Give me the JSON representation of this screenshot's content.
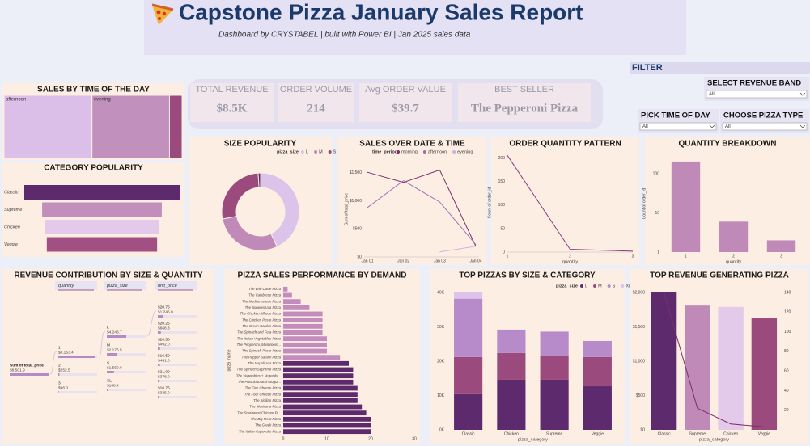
{
  "header": {
    "title": "Capstone Pizza January Sales Report",
    "subtitle": "Dashboard by CRYSTABEL | built with Power BI | Jan 2025 sales data"
  },
  "kpis": [
    {
      "label": "TOTAL REVENUE",
      "value": "$8.5K"
    },
    {
      "label": "ORDER VOLUME",
      "value": "214"
    },
    {
      "label": "Avg ORDER VALUE",
      "value": "$39.7"
    },
    {
      "label": "BEST SELLER",
      "value": "The Pepperoni Pizza"
    }
  ],
  "filters": {
    "title": "FILTER",
    "items": [
      {
        "label": "SELECT REVENUE BAND",
        "value": "All"
      },
      {
        "label": "PICK TIME OF DAY",
        "value": "All"
      },
      {
        "label": "CHOOSE PIZZA TYPE",
        "value": "All"
      }
    ]
  },
  "chart_data": [
    {
      "type": "treemap",
      "title": "SALES BY TIME OF THE DAY",
      "categories": [
        "afternoon",
        "evening",
        null
      ],
      "values": [
        4200,
        3700,
        600
      ],
      "colors": [
        "#dcbfe8",
        "#c290bd",
        "#9a4a7c"
      ]
    },
    {
      "type": "funnel",
      "title": "CATEGORY POPULARITY",
      "categories": [
        "Classic",
        "Supreme",
        "Chicken",
        "Veggie"
      ],
      "values": [
        100,
        77,
        74,
        71
      ],
      "colors": [
        "#5e2a6e",
        "#c28fbd",
        "#e3c9ea",
        "#a24f83"
      ]
    },
    {
      "type": "donut",
      "title": "SIZE POPULARITY",
      "legend_title": "pizza_size",
      "categories": [
        "L",
        "M",
        "S",
        "XL"
      ],
      "values": [
        43,
        29,
        27,
        1
      ],
      "colors": [
        "#dcc3ea",
        "#c08ab8",
        "#9a4a7c",
        "#5e2a6e"
      ]
    },
    {
      "type": "line",
      "title": "SALES OVER DATE & TIME",
      "legend_title": "time_period",
      "categories": [
        "Jan 01",
        "Jan 02",
        "Jan 03",
        "Jan 04"
      ],
      "series": [
        {
          "name": "morning",
          "color": "#7b2d6e",
          "values": [
            1510,
            1330,
            1550,
            190
          ]
        },
        {
          "name": "afternoon",
          "color": "#a070b0",
          "values": [
            880,
            1360,
            980,
            220
          ]
        },
        {
          "name": "evening",
          "color": "#d4aede",
          "values": [
            null,
            null,
            90,
            190
          ]
        }
      ],
      "ylim": [
        0,
        1700
      ],
      "yticks": [
        {
          "value": 0,
          "label": "$0"
        },
        {
          "value": 500,
          "label": "$500"
        },
        {
          "value": 1000,
          "label": "$1,000"
        },
        {
          "value": 1500,
          "label": "$1,500"
        }
      ],
      "ylabel": "Sum of total_price"
    },
    {
      "type": "line",
      "title": "ORDER QUANTITY PATTERN",
      "x": [
        1,
        2,
        3
      ],
      "values": [
        206,
        6,
        2
      ],
      "color": "#8a3b82",
      "xlim": [
        1,
        3
      ],
      "xticks": [
        1,
        2,
        3
      ],
      "ylim": [
        0,
        210
      ],
      "yticks": [
        0,
        50,
        100,
        150,
        200
      ],
      "xlabel": "quantity",
      "ylabel": "Count of order_id"
    },
    {
      "type": "bar",
      "title": "QUANTITY BREAKDOWN",
      "categories": [
        "1",
        "2",
        "3"
      ],
      "values": [
        206,
        6,
        2
      ],
      "color": "#c08ab8",
      "log_scale": true,
      "ylim": [
        1,
        300
      ],
      "yticks": [
        1,
        10,
        100
      ],
      "xlabel": "quantity",
      "ylabel": "Count of order_id"
    },
    {
      "type": "decomposition",
      "title": "REVENUE CONTRIBUTION BY SIZE & QUANTITY",
      "fields": [
        "quantity",
        "pizza_size",
        "unit_price"
      ],
      "root": {
        "label": "Sum of total_price",
        "value": 8501.9,
        "value_label": "$8,501.9"
      },
      "levels": [
        [
          {
            "label": "1",
            "value": 8153.4,
            "value_label": "$8,153.4"
          },
          {
            "label": "2",
            "value": 252.5,
            "value_label": "$252.5"
          },
          {
            "label": "3",
            "value": 96.0,
            "value_label": "$96.0"
          }
        ],
        [
          {
            "label": "L",
            "value": 4248.7,
            "value_label": "$4,248.7"
          },
          {
            "label": "M",
            "value": 2176.5,
            "value_label": "$2,176.5"
          },
          {
            "label": "S",
            "value": 1559.8,
            "value_label": "$1,559.8"
          },
          {
            "label": "XL",
            "value": 168.4,
            "value_label": "$168.4"
          }
        ],
        [
          {
            "label": "$20.75",
            "value": 1245.0,
            "value_label": "$1,245.0"
          },
          {
            "label": "$20.25",
            "value": 668.3,
            "value_label": "$668.3"
          },
          {
            "label": "$20.50",
            "value": 492.0,
            "value_label": "$492.0"
          },
          {
            "label": "$16.50",
            "value": 461.0,
            "value_label": "$461.0"
          },
          {
            "label": "$21.00",
            "value": 378.0,
            "value_label": "$378.0"
          },
          {
            "label": "$16.75",
            "value": 335.0,
            "value_label": "$335.0"
          }
        ]
      ]
    },
    {
      "type": "bar",
      "orientation": "horizontal",
      "title": "PIZZA SALES PERFORMANCE BY DEMAND",
      "ylabel": "pizza_name",
      "categories": [
        "The Brie Carre Pizza",
        "The Calabrese Pizza",
        "The Mediterranean Pizza",
        "The Soppressata Pizza",
        "The Chicken Alfredo Pizza",
        "The Chicken Pesto Pizza",
        "The Green Garden Pizza",
        "The Spinach and Feta Pizza",
        "The Italian Vegetables Pizza",
        "The Pepperoni, Mushroom...",
        "The Spinach Pesto Pizza",
        "The Pepper Salami Pizza",
        "The Napolitana Pizza",
        "The Spinach Supreme Pizza",
        "The Vegetables + Vegetabl...",
        "The Prosciutto and Arugul...",
        "The Five Cheese Pizza",
        "The Four Cheese Pizza",
        "The Sicilian Pizza",
        "The Mexicana Pizza",
        "The Southwest Chicken Pi...",
        "The Big Meat Pizza",
        "The Greek Pizza",
        "The Italian Capocollo Pizza"
      ],
      "values": [
        1,
        2,
        4,
        6,
        9,
        9,
        9,
        9,
        10,
        10,
        10,
        13,
        15,
        16,
        16,
        16,
        17,
        17,
        17,
        18,
        19,
        20,
        20,
        20
      ],
      "colors": [
        "#c38cbc",
        "#c38cbc",
        "#c38cbc",
        "#c38cbc",
        "#c38cbc",
        "#c38cbc",
        "#c38cbc",
        "#c38cbc",
        "#c38cbc",
        "#c38cbc",
        "#c38cbc",
        "#c38cbc",
        "#5e2a6e",
        "#5e2a6e",
        "#5e2a6e",
        "#5e2a6e",
        "#5e2a6e",
        "#5e2a6e",
        "#5e2a6e",
        "#5e2a6e",
        "#5e2a6e",
        "#5e2a6e",
        "#5e2a6e",
        "#5e2a6e"
      ],
      "xlim": [
        0,
        30
      ],
      "xticks": [
        0,
        10,
        20,
        30
      ]
    },
    {
      "type": "bar",
      "stacked": true,
      "title": "TOP PIZZAS BY SIZE & CATEGORY",
      "legend_title": "pizza_size",
      "xlabel": "pizza_category",
      "categories": [
        "Classic",
        "Chicken",
        "Supreme",
        "Veggie"
      ],
      "series": [
        {
          "name": "L",
          "color": "#5e2a6e",
          "values": [
            10.4,
            14.6,
            14.6,
            12.7
          ]
        },
        {
          "name": "M",
          "color": "#9a4a7c",
          "values": [
            10.8,
            7.8,
            7.0,
            8.5
          ]
        },
        {
          "name": "S",
          "color": "#b78ac9",
          "values": [
            17.0,
            6.8,
            7.0,
            4.7
          ]
        },
        {
          "name": "XL",
          "color": "#dcc3ea",
          "values": [
            2.0,
            0,
            0,
            0
          ]
        }
      ],
      "ylim": [
        0,
        40
      ],
      "yticks": [
        {
          "value": 0,
          "label": "0K"
        },
        {
          "value": 10,
          "label": "10K"
        },
        {
          "value": 20,
          "label": "20K"
        },
        {
          "value": 30,
          "label": "30K"
        },
        {
          "value": 40,
          "label": "40K"
        }
      ]
    },
    {
      "type": "combo",
      "title": "TOP REVENUE GENERATING PIZZA",
      "xlabel": "pizza_category",
      "categories": [
        "Classic",
        "Supreme",
        "Chicken",
        "Veggie"
      ],
      "series": [
        {
          "colors": [
            "#5e2a6e",
            "#c08ab8",
            "#e3c9ea",
            "#9a4a7c"
          ],
          "values": [
            2000,
            1810,
            1790,
            1635
          ]
        },
        {
          "color": "#7b2d6e",
          "axis": "y2",
          "values": [
            140,
            22,
            6,
            3
          ]
        }
      ],
      "ylim": [
        0,
        2000
      ],
      "yticks": [
        {
          "value": 0,
          "label": "$0"
        },
        {
          "value": 500,
          "label": "$500"
        },
        {
          "value": 1000,
          "label": "$1,000"
        },
        {
          "value": 1500,
          "label": "$1,500"
        },
        {
          "value": 2000,
          "label": "$2,000"
        }
      ],
      "y2lim": [
        0,
        140
      ],
      "y2ticks": [
        20,
        40,
        60,
        80,
        100,
        120,
        140
      ]
    }
  ]
}
